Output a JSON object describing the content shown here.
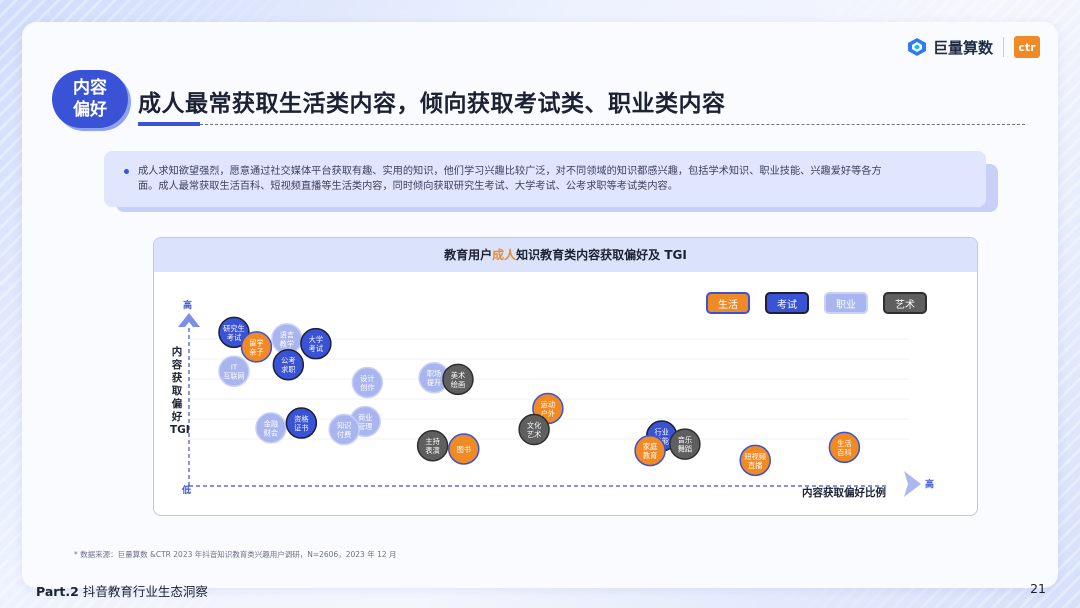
{
  "brand": {
    "name": "巨量算数",
    "partner": "ctr"
  },
  "section_badge": [
    "内容",
    "偏好"
  ],
  "title": "成人最常获取生活类内容，倾向获取考试类、职业类内容",
  "summary": {
    "line1": "成人求知欲望强烈，愿意通过社交媒体平台获取有趣、实用的知识，他们学习兴趣比较广泛，对不同领域的知识都感兴趣，包括学术知识、职业技能、兴趣爱好等各方",
    "line2": "面。成人最常获取生活百科、短视频直播等生活类内容，同时倾向获取研究生考试、大学考试、公考求职等考试类内容。"
  },
  "chart_title": {
    "before": "教育用户",
    "highlight": "成人",
    "after": "知识教育类内容获取偏好及 TGI"
  },
  "colors": {
    "accent": "#3a52d6",
    "highlight": "#f08a24"
  },
  "chart_data": {
    "type": "scatter",
    "xlabel": "内容获取偏好比例",
    "ylabel": "内容获取偏好 TGI",
    "x_axis_ticks": {
      "low": "",
      "high": "高"
    },
    "y_axis_ticks": {
      "low": "低",
      "high": "高"
    },
    "xlim": [
      0,
      100
    ],
    "ylim": [
      0,
      100
    ],
    "grid": true,
    "legend_position": "top-right",
    "categories": [
      {
        "name": "生活",
        "fill": "#f08a24",
        "text": "#ffffff",
        "border": "#3a52d6"
      },
      {
        "name": "考试",
        "fill": "#3a52d6",
        "text": "#ffffff",
        "border": "#1c2233"
      },
      {
        "name": "职业",
        "fill": "#a9b5ef",
        "text": "#ffffff",
        "border": "#c9d1f5"
      },
      {
        "name": "艺术",
        "fill": "#5f5f5f",
        "text": "#ffffff",
        "border": "#2f2f2f"
      }
    ],
    "points": [
      {
        "label": [
          "研究生",
          "考试"
        ],
        "category": "考试",
        "x": 6.2,
        "y": 93
      },
      {
        "label": [
          "留学",
          "亲子"
        ],
        "category": "生活",
        "x": 9.3,
        "y": 84
      },
      {
        "label": [
          "语言",
          "教学"
        ],
        "category": "职业",
        "x": 13.5,
        "y": 89
      },
      {
        "label": [
          "大学",
          "考试"
        ],
        "category": "考试",
        "x": 17.5,
        "y": 86
      },
      {
        "label": [
          "IT",
          "互联网"
        ],
        "category": "职业",
        "x": 6.2,
        "y": 69
      },
      {
        "label": [
          "公考",
          "求职"
        ],
        "category": "考试",
        "x": 13.7,
        "y": 73
      },
      {
        "label": [
          "设计",
          "创作"
        ],
        "category": "职业",
        "x": 24.6,
        "y": 62
      },
      {
        "label": [
          "职场",
          "提升"
        ],
        "category": "职业",
        "x": 33.8,
        "y": 65
      },
      {
        "label": [
          "美术",
          "绘画"
        ],
        "category": "艺术",
        "x": 37.1,
        "y": 64
      },
      {
        "label": [
          "金融",
          "财会"
        ],
        "category": "职业",
        "x": 11.3,
        "y": 34
      },
      {
        "label": [
          "资格",
          "证书"
        ],
        "category": "考试",
        "x": 15.5,
        "y": 37
      },
      {
        "label": [
          "商业",
          "管理"
        ],
        "category": "职业",
        "x": 24.3,
        "y": 38
      },
      {
        "label": [
          "知识",
          "付费"
        ],
        "category": "职业",
        "x": 21.4,
        "y": 33
      },
      {
        "label": [
          "主持",
          "表演"
        ],
        "category": "艺术",
        "x": 33.6,
        "y": 23
      },
      {
        "label": [
          "图书"
        ],
        "category": "生活",
        "x": 37.9,
        "y": 21
      },
      {
        "label": [
          "运动",
          "户外"
        ],
        "category": "生活",
        "x": 49.5,
        "y": 46
      },
      {
        "label": [
          "文化",
          "艺术"
        ],
        "category": "艺术",
        "x": 47.6,
        "y": 33
      },
      {
        "label": [
          "行业",
          "技能"
        ],
        "category": "考试",
        "x": 65.2,
        "y": 29
      },
      {
        "label": [
          "家庭",
          "教育"
        ],
        "category": "生活",
        "x": 63.6,
        "y": 20
      },
      {
        "label": [
          "音乐",
          "舞蹈"
        ],
        "category": "艺术",
        "x": 68.4,
        "y": 24
      },
      {
        "label": [
          "短视频",
          "直播"
        ],
        "category": "生活",
        "x": 78.1,
        "y": 14
      },
      {
        "label": [
          "生活",
          "百科"
        ],
        "category": "生活",
        "x": 90.4,
        "y": 22
      }
    ]
  },
  "footnote": "* 数据来源：巨量算数 &CTR 2023 年抖音知识教育类兴趣用户调研，N=2606，2023 年 12 月",
  "footer": {
    "part": "Part.2",
    "section": "抖音教育行业生态洞察",
    "page": "21"
  }
}
